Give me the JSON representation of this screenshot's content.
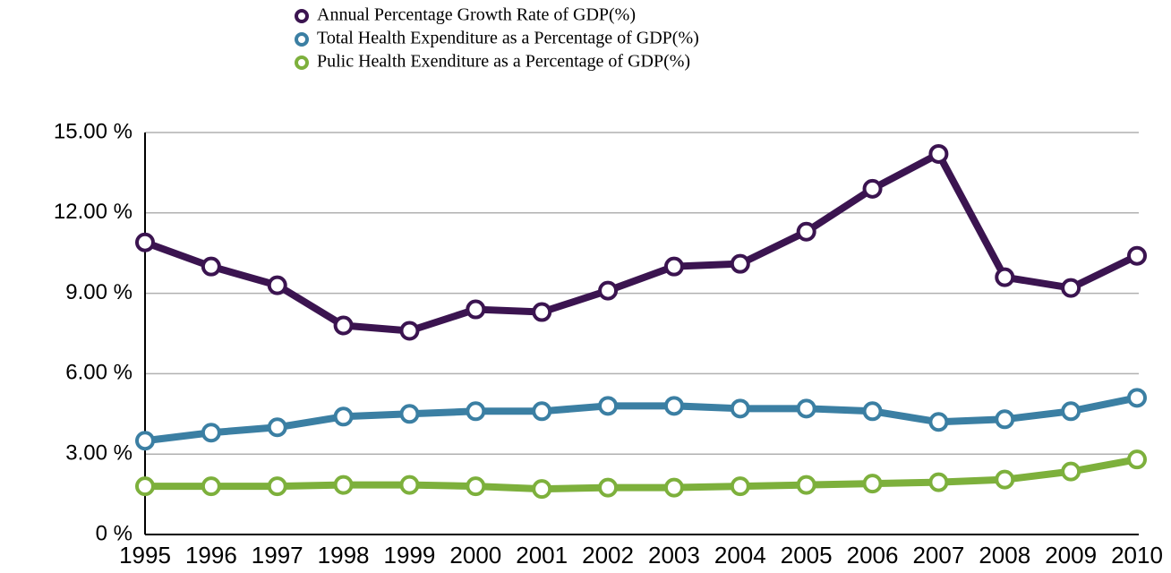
{
  "chart_data": {
    "type": "line",
    "categories": [
      "1995",
      "1996",
      "1997",
      "1998",
      "1999",
      "2000",
      "2001",
      "2002",
      "2003",
      "2004",
      "2005",
      "2006",
      "2007",
      "2008",
      "2009",
      "2010"
    ],
    "series": [
      {
        "name": "Annual Percentage Growth Rate of GDP(%)",
        "color": "#3b1450",
        "values": [
          10.9,
          10.0,
          9.3,
          7.8,
          7.6,
          8.4,
          8.3,
          9.1,
          10.0,
          10.1,
          11.3,
          12.9,
          14.2,
          9.6,
          9.2,
          10.4
        ]
      },
      {
        "name": "Total Health Expenditure as a Percentage of GDP(%)",
        "color": "#3b7fa3",
        "values": [
          3.5,
          3.8,
          4.0,
          4.4,
          4.5,
          4.6,
          4.6,
          4.8,
          4.8,
          4.7,
          4.7,
          4.6,
          4.2,
          4.3,
          4.6,
          5.1
        ]
      },
      {
        "name": "Pulic Health Exenditure as a Percentage of GDP(%)",
        "color": "#7db03c",
        "values": [
          1.8,
          1.8,
          1.8,
          1.85,
          1.85,
          1.8,
          1.7,
          1.75,
          1.75,
          1.8,
          1.85,
          1.9,
          1.95,
          2.05,
          2.35,
          2.8
        ]
      }
    ],
    "ylim": [
      0,
      15
    ],
    "yticks": [
      {
        "value": 0,
        "label": "0 %"
      },
      {
        "value": 3,
        "label": "3.00 %"
      },
      {
        "value": 6,
        "label": "6.00 %"
      },
      {
        "value": 9,
        "label": "9.00 %"
      },
      {
        "value": 12,
        "label": "12.00 %"
      },
      {
        "value": 15,
        "label": "15.00 %"
      }
    ],
    "grid": true,
    "legend": "top"
  }
}
